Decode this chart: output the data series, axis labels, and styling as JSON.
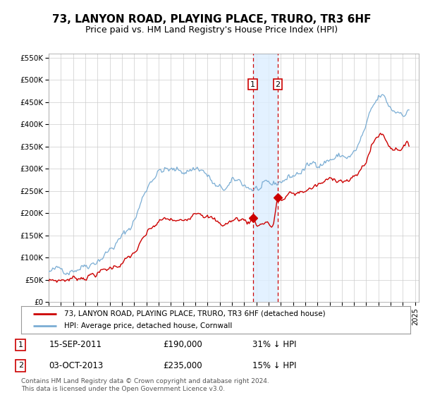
{
  "title": "73, LANYON ROAD, PLAYING PLACE, TRURO, TR3 6HF",
  "subtitle": "Price paid vs. HM Land Registry's House Price Index (HPI)",
  "legend_line1": "73, LANYON ROAD, PLAYING PLACE, TRURO, TR3 6HF (detached house)",
  "legend_line2": "HPI: Average price, detached house, Cornwall",
  "footnote": "Contains HM Land Registry data © Crown copyright and database right 2024.\nThis data is licensed under the Open Government Licence v3.0.",
  "sale1_date": "15-SEP-2011",
  "sale1_price": "£190,000",
  "sale1_hpi": "31% ↓ HPI",
  "sale1_year": 2011.71,
  "sale1_value": 190000,
  "sale2_date": "03-OCT-2013",
  "sale2_price": "£235,000",
  "sale2_hpi": "15% ↓ HPI",
  "sale2_year": 2013.75,
  "sale2_value": 235000,
  "ylim": [
    0,
    560000
  ],
  "xlim_start": 1995,
  "xlim_end": 2025.3,
  "yticks": [
    0,
    50000,
    100000,
    150000,
    200000,
    250000,
    300000,
    350000,
    400000,
    450000,
    500000,
    550000
  ],
  "ytick_labels": [
    "£0",
    "£50K",
    "£100K",
    "£150K",
    "£200K",
    "£250K",
    "£300K",
    "£350K",
    "£400K",
    "£450K",
    "£500K",
    "£550K"
  ],
  "xticks": [
    1995,
    1996,
    1997,
    1998,
    1999,
    2000,
    2001,
    2002,
    2003,
    2004,
    2005,
    2006,
    2007,
    2008,
    2009,
    2010,
    2011,
    2012,
    2013,
    2014,
    2015,
    2016,
    2017,
    2018,
    2019,
    2020,
    2021,
    2022,
    2023,
    2024,
    2025
  ],
  "line_red_color": "#cc0000",
  "line_blue_color": "#7aadd4",
  "shade_color": "#ddeeff",
  "marker_color": "#cc0000",
  "grid_color": "#cccccc",
  "background_color": "#ffffff",
  "title_fontsize": 11,
  "subtitle_fontsize": 9
}
